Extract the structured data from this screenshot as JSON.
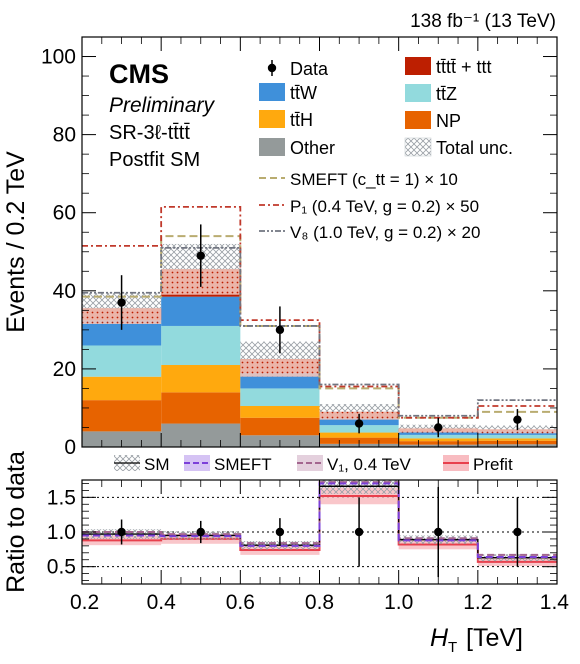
{
  "header": {
    "lumi": "138 fb⁻¹ (13 TeV)"
  },
  "cms_label": {
    "name": "CMS",
    "status": "Preliminary",
    "region": "SR-3ℓ-tt̄tt̄",
    "fit": "Postfit SM"
  },
  "colors": {
    "Other": "#949a9a",
    "NP": "#e76300",
    "ttH": "#ffa90e",
    "ttZ": "#92dadd",
    "ttW": "#3f90da",
    "tttt_ttt": "#bd1f01",
    "smeft": "#b9ac70",
    "p1": "#c0392b",
    "v8": "#717581",
    "ratio_smeft": "#7b3fd9",
    "ratio_v1": "#a3668f",
    "ratio_prefit": "#e8404d"
  },
  "chart_data": [
    {
      "type": "bar",
      "stacked": true,
      "xlabel": "H_T [TeV]",
      "ylabel": "Events / 0.2 TeV",
      "xlim": [
        0.2,
        1.4
      ],
      "ylim": [
        0,
        105
      ],
      "bin_edges": [
        0.2,
        0.4,
        0.6,
        0.8,
        1.0,
        1.2,
        1.4
      ],
      "x_ticks": [
        "0.2",
        "0.4",
        "0.6",
        "0.8",
        "1.0",
        "1.2",
        "1.4"
      ],
      "y_ticks": [
        0,
        20,
        40,
        60,
        80,
        100
      ],
      "stack": [
        {
          "key": "Other",
          "label": "Other",
          "values": [
            4.0,
            6.0,
            3.0,
            0.8,
            0.6,
            0.7
          ]
        },
        {
          "key": "NP",
          "label": "NP",
          "values": [
            8.0,
            8.0,
            4.5,
            1.6,
            0.9,
            0.9
          ]
        },
        {
          "key": "ttH",
          "label": "tt̄H",
          "values": [
            6.0,
            7.0,
            3.0,
            1.3,
            0.7,
            0.6
          ]
        },
        {
          "key": "ttZ",
          "label": "tt̄Z",
          "values": [
            8.0,
            10.0,
            4.5,
            1.9,
            0.9,
            0.9
          ]
        },
        {
          "key": "ttW",
          "label": "tt̄W",
          "values": [
            6.5,
            7.5,
            4.0,
            1.8,
            0.8,
            0.9
          ]
        },
        {
          "key": "tttt_ttt",
          "label": "tt̄tt̄ + ttt",
          "values": [
            3.0,
            7.0,
            3.5,
            1.6,
            0.8,
            0.5
          ]
        }
      ],
      "total_sm": [
        35.5,
        45.5,
        22.5,
        9.0,
        4.7,
        4.5
      ],
      "total_unc": [
        4.0,
        6.5,
        4.5,
        2.0,
        1.0,
        1.0
      ],
      "total_unc_label": "Total unc.",
      "data": {
        "label": "Data",
        "x": [
          0.3,
          0.5,
          0.7,
          0.9,
          1.1,
          1.3
        ],
        "y": [
          37,
          49,
          30,
          6,
          5,
          7
        ],
        "err": [
          7,
          8,
          6,
          2.5,
          2.5,
          2.7
        ]
      },
      "overlays": [
        {
          "key": "smeft",
          "label": "SMEFT (c_tt = 1) × 10",
          "values": [
            38.5,
            54,
            31,
            15,
            7.5,
            9
          ]
        },
        {
          "key": "p1",
          "label": "P₁ (0.4 TeV, g = 0.2) × 50",
          "values": [
            51.5,
            61.5,
            32.5,
            15.5,
            7.5,
            10.5
          ]
        },
        {
          "key": "v8",
          "label": "V₈ (1.0 TeV, g = 0.2) × 20",
          "values": [
            39.5,
            51,
            31,
            16,
            8,
            12
          ]
        }
      ]
    },
    {
      "type": "line",
      "ylabel": "Ratio to data",
      "xlim": [
        0.2,
        1.4
      ],
      "ylim": [
        0.25,
        1.75
      ],
      "y_ticks": [
        "0.5",
        "1.0",
        "1.5"
      ],
      "gridlines": [
        0.5,
        1.0,
        1.5
      ],
      "x": [
        0.3,
        0.5,
        0.7,
        0.9,
        1.1,
        1.3
      ],
      "data_points": [
        1,
        1,
        1,
        1,
        1,
        1
      ],
      "data_err": [
        0.18,
        0.16,
        0.2,
        0.5,
        0.65,
        0.5
      ],
      "series": [
        {
          "key": "sm",
          "name": "SM",
          "values": [
            0.97,
            0.95,
            0.81,
            1.66,
            0.89,
            0.63
          ],
          "unc": [
            0.07,
            0.06,
            0.06,
            0.11,
            0.06,
            0.05
          ]
        },
        {
          "key": "smeft",
          "name": "SMEFT",
          "values": [
            0.95,
            0.94,
            0.8,
            1.7,
            0.88,
            0.64
          ]
        },
        {
          "key": "v1",
          "name": "V₁, 0.4 TeV",
          "values": [
            1.0,
            0.97,
            0.84,
            1.72,
            0.91,
            0.67
          ]
        },
        {
          "key": "prefit",
          "name": "Prefit",
          "values": [
            0.88,
            0.9,
            0.74,
            1.52,
            0.82,
            0.57
          ],
          "unc": [
            0.07,
            0.07,
            0.07,
            0.12,
            0.07,
            0.06
          ]
        }
      ]
    }
  ]
}
